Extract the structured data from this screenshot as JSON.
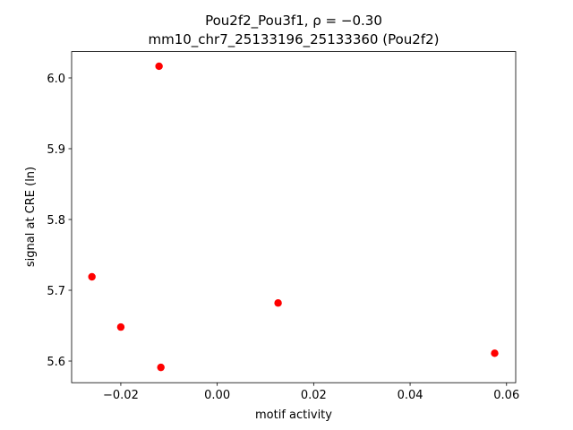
{
  "chart_data": {
    "type": "scatter",
    "title": "Pou2f2_Pou3f1, ρ = −0.30",
    "subtitle": "mm10_chr7_25133196_25133360 (Pou2f2)",
    "x_label": "motif activity",
    "y_label": "signal at CRE (ln)",
    "color": "#ff0000",
    "x": [
      -0.01207,
      -0.02599,
      -0.02,
      -0.01169,
      0.01262,
      0.05754
    ],
    "values": [
      6.0165,
      5.719,
      5.648,
      5.591,
      5.682,
      5.611
    ],
    "xlim": [
      -0.0302,
      0.0619
    ],
    "ylim": [
      5.5694,
      6.0372
    ],
    "xticks": [
      {
        "value": -0.02,
        "label": "−0.02"
      },
      {
        "value": 0,
        "label": "0.00"
      },
      0.02,
      0.04,
      0.06
    ],
    "yticks": [
      5.6,
      5.7,
      5.8,
      5.9,
      {
        "value": 6.0,
        "label": "6.0"
      }
    ]
  }
}
